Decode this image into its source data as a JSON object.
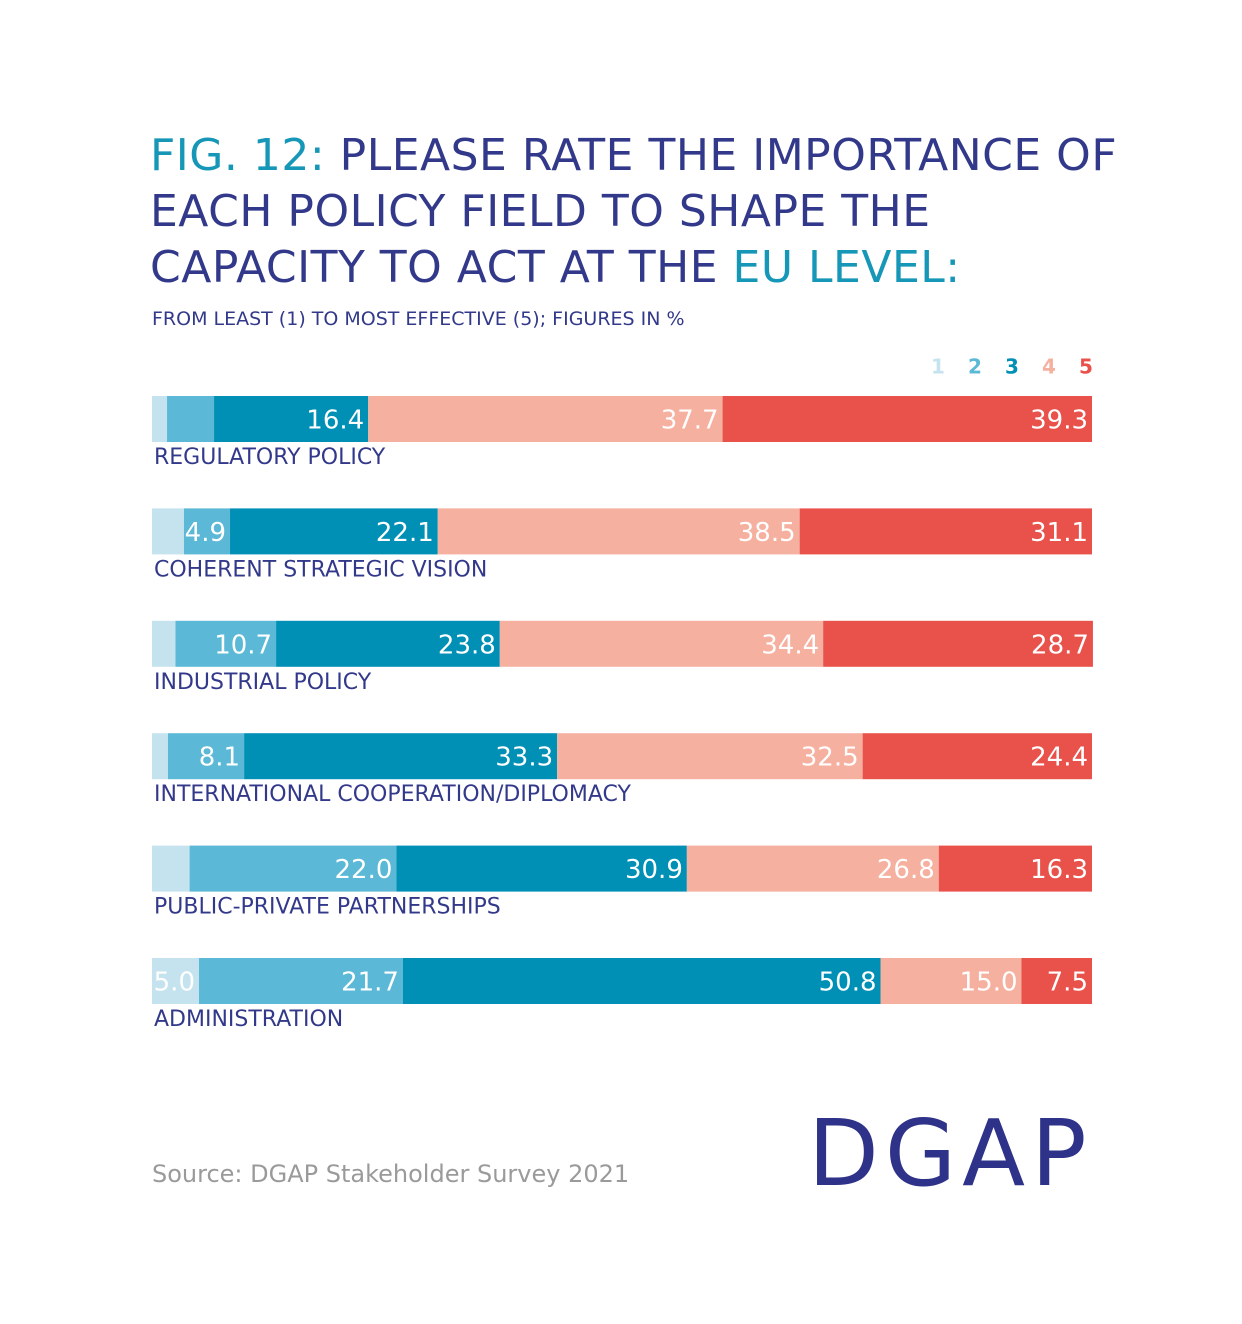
{
  "chart_data": {
    "type": "bar",
    "orientation": "horizontal",
    "stacked": true,
    "title": [
      "FIG. 12:",
      "PLEASE RATE THE IMPORTANCE OF EACH POLICY FIELD TO SHAPE THE CAPACITY TO ACT AT THE",
      "EU LEVEL:"
    ],
    "subtitle": "FROM LEAST (1) TO MOST EFFECTIVE (5); FIGURES IN %",
    "source": "Source: DGAP Stakeholder Survey 2021",
    "logo": "DGAP",
    "categories": [
      "REGULATORY POLICY",
      "COHERENT STRATEGIC VISION",
      "INDUSTRIAL POLICY",
      "INTERNATIONAL COOPERATION/DIPLOMACY",
      "PUBLIC-PRIVATE PARTNERSHIPS",
      "ADMINISTRATION"
    ],
    "xlim": [
      0,
      100
    ],
    "legend": "top-right",
    "series": [
      {
        "name": "1",
        "color": "#c5e3ee",
        "values": [
          1.6,
          3.4,
          2.5,
          1.7,
          4.0,
          5.0
        ],
        "value_labels": [
          null,
          null,
          null,
          null,
          null,
          "5.0"
        ]
      },
      {
        "name": "2",
        "color": "#5bb8d6",
        "values": [
          5.0,
          4.9,
          10.7,
          8.1,
          22.0,
          21.7
        ],
        "value_labels": [
          null,
          "4.9",
          "10.7",
          "8.1",
          "22.0",
          "21.7"
        ]
      },
      {
        "name": "3",
        "color": "#0090b5",
        "values": [
          16.4,
          22.1,
          23.8,
          33.3,
          30.9,
          50.8
        ],
        "value_labels": [
          "16.4",
          "22.1",
          "23.8",
          "33.3",
          "30.9",
          "50.8"
        ]
      },
      {
        "name": "4",
        "color": "#f5b09f",
        "values": [
          37.7,
          38.5,
          34.4,
          32.5,
          26.8,
          15.0
        ],
        "value_labels": [
          "37.7",
          "38.5",
          "34.4",
          "32.5",
          "26.8",
          "15.0"
        ]
      },
      {
        "name": "5",
        "color": "#e9514b",
        "values": [
          39.3,
          31.1,
          28.7,
          24.4,
          16.3,
          7.5
        ],
        "value_labels": [
          "39.3",
          "31.1",
          "28.7",
          "24.4",
          "16.3",
          "7.5"
        ]
      }
    ]
  }
}
